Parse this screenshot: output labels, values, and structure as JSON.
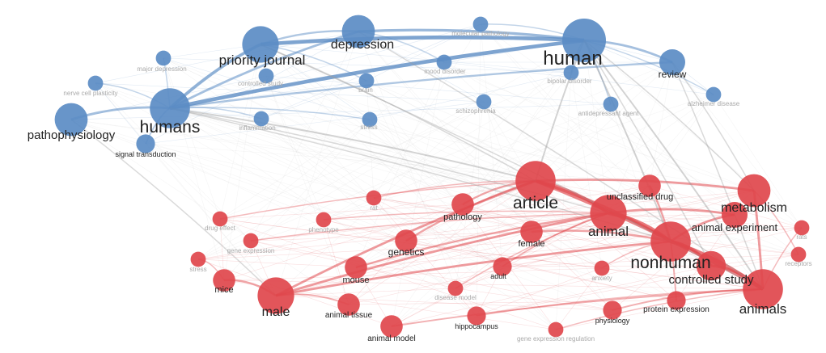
{
  "colors": {
    "blue": "#5b8cc4",
    "red": "#e0474c",
    "edge_gray": "#c8c8c8"
  },
  "nodes": [
    {
      "id": "human",
      "label": "human",
      "cluster": "blue",
      "weight": 10
    },
    {
      "id": "humans",
      "label": "humans",
      "cluster": "blue",
      "weight": 9
    },
    {
      "id": "priority",
      "label": "priority journal",
      "cluster": "blue",
      "weight": 8
    },
    {
      "id": "depression",
      "label": "depression",
      "cluster": "blue",
      "weight": 7
    },
    {
      "id": "patho",
      "label": "pathophysiology",
      "cluster": "blue",
      "weight": 7
    },
    {
      "id": "review",
      "label": "review",
      "cluster": "blue",
      "weight": 5
    },
    {
      "id": "moleculpath",
      "label": "molecular pathology",
      "cluster": "blue",
      "weight": 2
    },
    {
      "id": "majordep",
      "label": "major depression",
      "cluster": "blue",
      "weight": 2
    },
    {
      "id": "nervecell",
      "label": "nerve cell plasticity",
      "cluster": "blue",
      "weight": 2
    },
    {
      "id": "casecontrol",
      "label": "controlled study",
      "cluster": "blue",
      "weight": 2
    },
    {
      "id": "mood",
      "label": "mood disorder",
      "cluster": "blue",
      "weight": 2
    },
    {
      "id": "brain",
      "label": "brain",
      "cluster": "blue",
      "weight": 2
    },
    {
      "id": "bipolar",
      "label": "bipolar disorder",
      "cluster": "blue",
      "weight": 2
    },
    {
      "id": "schizo",
      "label": "schizophrenia",
      "cluster": "blue",
      "weight": 2
    },
    {
      "id": "antidep",
      "label": "antidepressant agent",
      "cluster": "blue",
      "weight": 2
    },
    {
      "id": "alzheimer",
      "label": "alzheimer disease",
      "cluster": "blue",
      "weight": 2
    },
    {
      "id": "inflam",
      "label": "inflammation",
      "cluster": "blue",
      "weight": 2
    },
    {
      "id": "stress",
      "label": "stress",
      "cluster": "blue",
      "weight": 2
    },
    {
      "id": "signal",
      "label": "signal transduction",
      "cluster": "blue",
      "weight": 3
    },
    {
      "id": "article",
      "label": "article",
      "cluster": "red",
      "weight": 9
    },
    {
      "id": "animal",
      "label": "animal",
      "cluster": "red",
      "weight": 8
    },
    {
      "id": "nonhuman",
      "label": "nonhuman",
      "cluster": "red",
      "weight": 9
    },
    {
      "id": "animals",
      "label": "animals",
      "cluster": "red",
      "weight": 9
    },
    {
      "id": "metabolism",
      "label": "metabolism",
      "cluster": "red",
      "weight": 7
    },
    {
      "id": "animalexp",
      "label": "animal experiment",
      "cluster": "red",
      "weight": 5
    },
    {
      "id": "unclass",
      "label": "unclassified drug",
      "cluster": "red",
      "weight": 4
    },
    {
      "id": "controlled",
      "label": "controlled study",
      "cluster": "red",
      "weight": 6
    },
    {
      "id": "pathology",
      "label": "pathology",
      "cluster": "red",
      "weight": 4
    },
    {
      "id": "female",
      "label": "female",
      "cluster": "red",
      "weight": 4
    },
    {
      "id": "genetics",
      "label": "genetics",
      "cluster": "red",
      "weight": 4
    },
    {
      "id": "mouse",
      "label": "mouse",
      "cluster": "red",
      "weight": 4
    },
    {
      "id": "adult",
      "label": "adult",
      "cluster": "red",
      "weight": 3
    },
    {
      "id": "mice",
      "label": "mice",
      "cluster": "red",
      "weight": 4
    },
    {
      "id": "male",
      "label": "male",
      "cluster": "red",
      "weight": 8
    },
    {
      "id": "animaltissue",
      "label": "animal tissue",
      "cluster": "red",
      "weight": 4
    },
    {
      "id": "animalmodel",
      "label": "animal model",
      "cluster": "red",
      "weight": 4
    },
    {
      "id": "hippocampus",
      "label": "hippocampus",
      "cluster": "red",
      "weight": 3
    },
    {
      "id": "geneexpreg",
      "label": "gene expression regulation",
      "cluster": "red",
      "weight": 2
    },
    {
      "id": "physiology",
      "label": "physiology",
      "cluster": "red",
      "weight": 3
    },
    {
      "id": "proteinexp",
      "label": "protein expression",
      "cluster": "red",
      "weight": 3
    },
    {
      "id": "rats",
      "label": "rats",
      "cluster": "red",
      "weight": 2
    },
    {
      "id": "receptors",
      "label": "receptors",
      "cluster": "red",
      "weight": 2
    },
    {
      "id": "drugeffect",
      "label": "drug effect",
      "cluster": "red",
      "weight": 2
    },
    {
      "id": "geneexp",
      "label": "gene expression",
      "cluster": "red",
      "weight": 2
    },
    {
      "id": "phenotype",
      "label": "phenotype",
      "cluster": "red",
      "weight": 2
    },
    {
      "id": "stress2",
      "label": "stress",
      "cluster": "red",
      "weight": 2
    },
    {
      "id": "rat",
      "label": "rat",
      "cluster": "red",
      "weight": 2
    },
    {
      "id": "anxiety",
      "label": "anxiety",
      "cluster": "red",
      "weight": 2
    },
    {
      "id": "disease",
      "label": "disease model",
      "cluster": "red",
      "weight": 2
    }
  ],
  "links": [
    [
      "human",
      "humans",
      9
    ],
    [
      "human",
      "priority",
      9
    ],
    [
      "humans",
      "priority",
      7
    ],
    [
      "human",
      "depression",
      6
    ],
    [
      "humans",
      "patho",
      5
    ],
    [
      "humans",
      "depression",
      5
    ],
    [
      "human",
      "review",
      5
    ],
    [
      "humans",
      "review",
      4
    ],
    [
      "priority",
      "depression",
      4
    ],
    [
      "humans",
      "signal",
      3
    ],
    [
      "human",
      "moleculpath",
      2
    ],
    [
      "humans",
      "majordep",
      2
    ],
    [
      "humans",
      "nervecell",
      2
    ],
    [
      "human",
      "bipolar",
      2
    ],
    [
      "humans",
      "inflam",
      2
    ],
    [
      "human",
      "alzheimer",
      2
    ],
    [
      "human",
      "antidep",
      2
    ],
    [
      "humans",
      "stress",
      2
    ],
    [
      "priority",
      "brain",
      2
    ],
    [
      "depression",
      "mood",
      2
    ],
    [
      "article",
      "nonhuman",
      7
    ],
    [
      "article",
      "animal",
      7
    ],
    [
      "animal",
      "nonhuman",
      8
    ],
    [
      "nonhuman",
      "animals",
      8
    ],
    [
      "nonhuman",
      "controlled",
      7
    ],
    [
      "animals",
      "controlled",
      6
    ],
    [
      "article",
      "animals",
      7
    ],
    [
      "article",
      "metabolism",
      5
    ],
    [
      "animal",
      "animalexp",
      5
    ],
    [
      "metabolism",
      "animals",
      5
    ],
    [
      "nonhuman",
      "male",
      5
    ],
    [
      "male",
      "animal",
      5
    ],
    [
      "article",
      "male",
      5
    ],
    [
      "mouse",
      "animal",
      4
    ],
    [
      "mice",
      "male",
      4
    ],
    [
      "genetics",
      "article",
      4
    ],
    [
      "pathology",
      "article",
      4
    ],
    [
      "female",
      "nonhuman",
      4
    ],
    [
      "unclass",
      "nonhuman",
      4
    ],
    [
      "animalexp",
      "nonhuman",
      5
    ],
    [
      "animaltissue",
      "male",
      3
    ],
    [
      "animalmodel",
      "animals",
      3
    ],
    [
      "proteinexp",
      "nonhuman",
      3
    ],
    [
      "physiology",
      "animals",
      3
    ],
    [
      "adult",
      "animal",
      3
    ],
    [
      "hippocampus",
      "animals",
      2
    ],
    [
      "geneexpreg",
      "animals",
      2
    ],
    [
      "rats",
      "animals",
      2
    ],
    [
      "receptors",
      "metabolism",
      2
    ],
    [
      "drugeffect",
      "article",
      2
    ],
    [
      "geneexp",
      "animal",
      2
    ],
    [
      "phenotype",
      "animal",
      2
    ],
    [
      "stress2",
      "mice",
      2
    ],
    [
      "rat",
      "article",
      2
    ],
    [
      "anxiety",
      "nonhuman",
      2
    ],
    [
      "disease",
      "animal",
      2
    ],
    [
      "human",
      "article",
      3
    ],
    [
      "human",
      "nonhuman",
      3
    ],
    [
      "human",
      "animals",
      3
    ],
    [
      "humans",
      "article",
      3
    ],
    [
      "humans",
      "animal",
      2
    ],
    [
      "priority",
      "animals",
      2
    ],
    [
      "priority",
      "article",
      2
    ],
    [
      "depression",
      "animals",
      2
    ],
    [
      "human",
      "metabolism",
      2
    ],
    [
      "review",
      "metabolism",
      2
    ],
    [
      "patho",
      "male",
      2
    ],
    [
      "humans",
      "nonhuman",
      2
    ],
    [
      "human",
      "controlled",
      2
    ],
    [
      "review",
      "animals",
      2
    ]
  ]
}
